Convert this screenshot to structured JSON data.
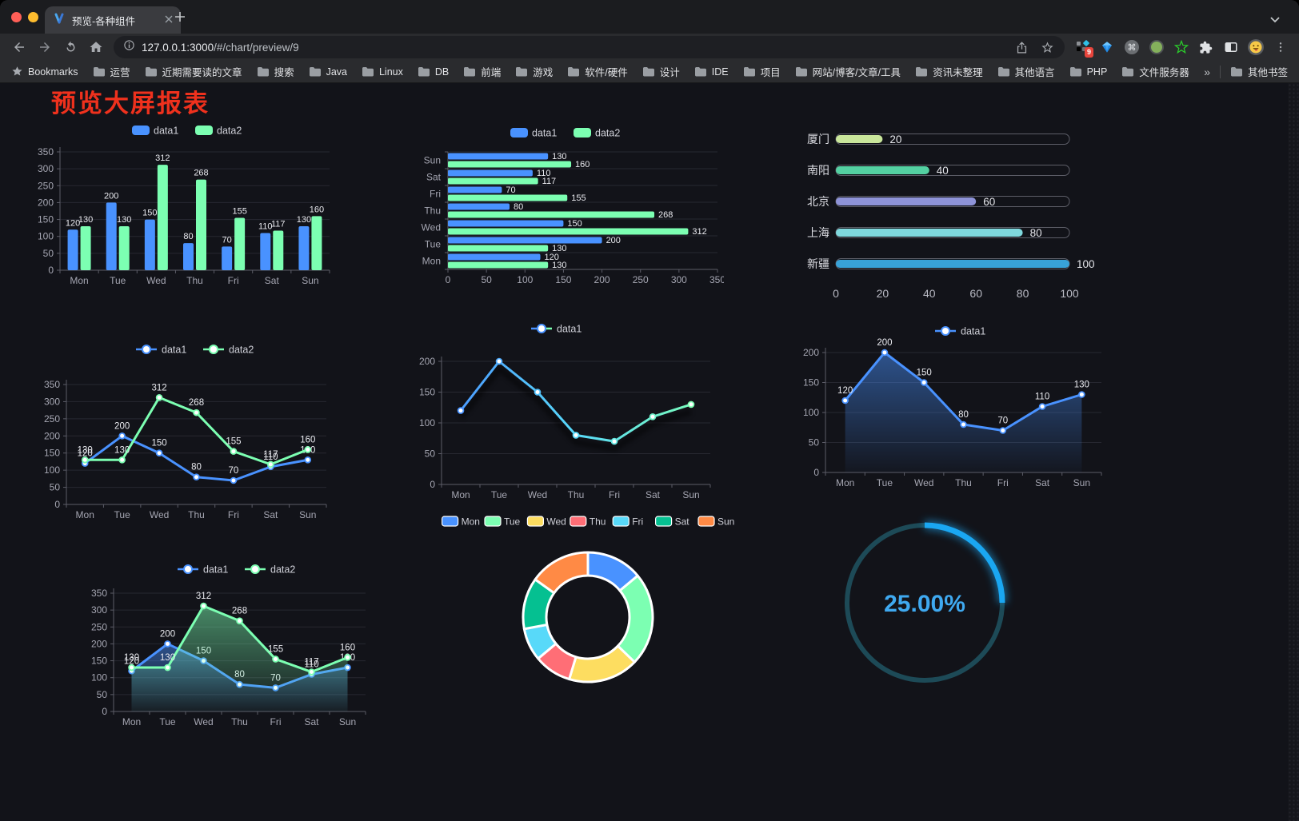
{
  "browser": {
    "tab_title": "预览-各种组件",
    "url_host": "127.0.0.1:3000",
    "url_path": "/#/chart/preview/9",
    "bookmarks_root_label": "Bookmarks",
    "bookmark_folders": [
      "运营",
      "近期需要读的文章",
      "搜索",
      "Java",
      "Linux",
      "DB",
      "前端",
      "游戏",
      "软件/硬件",
      "设计",
      "IDE",
      "项目",
      "网站/博客/文章/工具",
      "资讯未整理",
      "其他语言",
      "PHP",
      "文件服务器"
    ],
    "overflow_chevron": "»",
    "other_bookmarks_label": "其他书签",
    "extension_badge": "9",
    "new_tab_plus": "+"
  },
  "page": {
    "title": "预览大屏报表",
    "title_color": "#ef311d",
    "background": "#121319"
  },
  "colors": {
    "series_blue": "#4992ff",
    "series_green": "#7cffb2",
    "axis_text": "#a5a6b2",
    "value_label": "#e9eaef",
    "gauge_blue": "#1aa7f2"
  },
  "chart_data": [
    {
      "id": "bar-grouped-vertical",
      "type": "bar",
      "categories": [
        "Mon",
        "Tue",
        "Wed",
        "Thu",
        "Fri",
        "Sat",
        "Sun"
      ],
      "series": [
        {
          "name": "data1",
          "color": "#4992ff",
          "values": [
            120,
            200,
            150,
            80,
            70,
            110,
            130
          ]
        },
        {
          "name": "data2",
          "color": "#7cffb2",
          "values": [
            130,
            130,
            312,
            268,
            155,
            117,
            160
          ]
        }
      ],
      "ylim": [
        0,
        350
      ],
      "ytick": 50,
      "legend": [
        "data1",
        "data2"
      ],
      "value_labels": true
    },
    {
      "id": "bar-grouped-horizontal",
      "type": "bar-horizontal",
      "categories": [
        "Mon",
        "Tue",
        "Wed",
        "Thu",
        "Fri",
        "Sat",
        "Sun"
      ],
      "category_display_top_to_bottom": [
        "Sun",
        "Sat",
        "Fri",
        "Thu",
        "Wed",
        "Tue",
        "Mon"
      ],
      "series": [
        {
          "name": "data1",
          "color": "#4992ff",
          "values": [
            120,
            200,
            150,
            80,
            70,
            110,
            130
          ]
        },
        {
          "name": "data2",
          "color": "#7cffb2",
          "values": [
            130,
            130,
            312,
            268,
            155,
            117,
            160
          ]
        }
      ],
      "xlim": [
        0,
        350
      ],
      "xtick": 50,
      "legend": [
        "data1",
        "data2"
      ],
      "value_labels": true
    },
    {
      "id": "capsule-progress-bars",
      "type": "capsule-bar",
      "categories": [
        "厦门",
        "南阳",
        "北京",
        "上海",
        "新疆"
      ],
      "values": [
        20,
        40,
        60,
        80,
        100
      ],
      "colors": [
        "#c9e69b",
        "#54d1a2",
        "#8e93d8",
        "#7fd8dd",
        "#38a2d8"
      ],
      "xlim": [
        0,
        100
      ],
      "xticks": [
        0,
        20,
        40,
        60,
        80,
        100
      ],
      "value_labels": true
    },
    {
      "id": "line-dual",
      "type": "line",
      "categories": [
        "Mon",
        "Tue",
        "Wed",
        "Thu",
        "Fri",
        "Sat",
        "Sun"
      ],
      "series": [
        {
          "name": "data1",
          "color": "#4992ff",
          "values": [
            120,
            200,
            150,
            80,
            70,
            110,
            130
          ]
        },
        {
          "name": "data2",
          "color": "#7cffb2",
          "values": [
            130,
            130,
            312,
            268,
            155,
            117,
            160
          ]
        }
      ],
      "ylim": [
        0,
        350
      ],
      "ytick": 50,
      "legend": [
        "data1",
        "data2"
      ],
      "value_labels": true
    },
    {
      "id": "line-gradient",
      "type": "line",
      "categories": [
        "Mon",
        "Tue",
        "Wed",
        "Thu",
        "Fri",
        "Sat",
        "Sun"
      ],
      "series": [
        {
          "name": "data1",
          "gradient": [
            "#4992ff",
            "#58d9f9",
            "#7cffb2"
          ],
          "values": [
            120,
            200,
            150,
            80,
            70,
            110,
            130
          ]
        }
      ],
      "ylim": [
        0,
        200
      ],
      "ytick": 50,
      "legend": [
        "data1"
      ],
      "value_labels": false,
      "shadow": true
    },
    {
      "id": "line-area-single",
      "type": "line",
      "categories": [
        "Mon",
        "Tue",
        "Wed",
        "Thu",
        "Fri",
        "Sat",
        "Sun"
      ],
      "series": [
        {
          "name": "data1",
          "color": "#4992ff",
          "area": true,
          "values": [
            120,
            200,
            150,
            80,
            70,
            110,
            130
          ]
        }
      ],
      "ylim": [
        0,
        200
      ],
      "ytick": 50,
      "legend": [
        "data1"
      ],
      "value_labels": true
    },
    {
      "id": "line-area-dual",
      "type": "line",
      "categories": [
        "Mon",
        "Tue",
        "Wed",
        "Thu",
        "Fri",
        "Sat",
        "Sun"
      ],
      "series": [
        {
          "name": "data1",
          "color": "#4992ff",
          "area": true,
          "values": [
            120,
            200,
            150,
            80,
            70,
            110,
            130
          ]
        },
        {
          "name": "data2",
          "color": "#7cffb2",
          "area": true,
          "values": [
            130,
            130,
            312,
            268,
            155,
            117,
            160
          ]
        }
      ],
      "ylim": [
        0,
        350
      ],
      "ytick": 50,
      "legend": [
        "data1",
        "data2"
      ],
      "value_labels": true
    },
    {
      "id": "donut-pie",
      "type": "pie",
      "categories": [
        "Mon",
        "Tue",
        "Wed",
        "Thu",
        "Fri",
        "Sat",
        "Sun"
      ],
      "values": [
        120,
        200,
        150,
        80,
        70,
        110,
        130
      ],
      "colors": [
        "#4992ff",
        "#7cffb2",
        "#fddd60",
        "#ff6e76",
        "#58d9f9",
        "#05c091",
        "#ff8a45"
      ],
      "legend_position": "top"
    },
    {
      "id": "gauge-ring",
      "type": "gauge",
      "value": 25,
      "max": 100,
      "display": "25.00%",
      "color": "#1aa7f2",
      "track_color": "#1d4a57",
      "text_color": "#3fa9f0"
    }
  ]
}
